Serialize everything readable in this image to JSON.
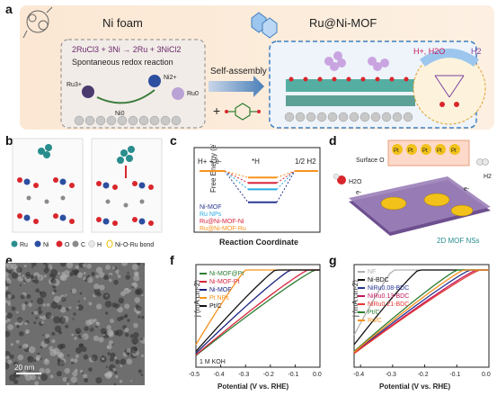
{
  "panel_labels": {
    "a": "a",
    "b": "b",
    "c": "c",
    "d": "d",
    "e": "e",
    "f": "f",
    "g": "g"
  },
  "panel_a": {
    "left_title": "Ni foam",
    "right_title": "Ru@Ni-MOF",
    "reaction": "2RuCl3 + 3Ni → 2Ru + 3NiCl2",
    "reaction_caption": "Spontaneous redox reaction",
    "species": {
      "ru3": "Ru3+",
      "ni2": "Ni2+",
      "ru0": "Ru0",
      "ni0": "Ni0"
    },
    "arrow_label": "Self-assembly",
    "plus": "+",
    "gas_left": "H+, H2O",
    "gas_right": "H2"
  },
  "panel_b": {
    "legend": [
      "Ru",
      "Ni",
      "O",
      "C",
      "H",
      "Ni-O-Ru bond"
    ],
    "legend_colors": [
      "#2a8d8d",
      "#2d4fa0",
      "#d9262c",
      "#8a8a8a",
      "#e8e8e8",
      "#e6c200"
    ]
  },
  "panel_c": {
    "chart_data": {
      "type": "line",
      "ylabel": "Free Energy (eV)",
      "xlabel": "Reaction Coordinate",
      "states": [
        "H+ + e-",
        "*H",
        "1/2 H2"
      ],
      "series": [
        {
          "name": "Ni-MOF",
          "color": "#2b3990",
          "values": [
            0,
            -0.58,
            0
          ]
        },
        {
          "name": "Ru NPs",
          "color": "#29abe2",
          "values": [
            0,
            -0.34,
            0
          ]
        },
        {
          "name": "Ru@Ni-MOF-Ni",
          "color": "#d7263d",
          "values": [
            0,
            -0.22,
            0
          ]
        },
        {
          "name": "Ru@Ni-MOF-Ru",
          "color": "#f7931e",
          "values": [
            0,
            -0.12,
            0
          ]
        }
      ]
    }
  },
  "panel_d": {
    "surface_label": "Surface O",
    "atom_labels": [
      "Pt",
      "Pt",
      "Pt",
      "Pt",
      "Pt"
    ],
    "h2o": "H2O",
    "h2": "H2",
    "electron": "e-",
    "caption": "2D MOF NSs"
  },
  "panel_e": {
    "scale": "20 nm"
  },
  "panel_f": {
    "chart_data": {
      "type": "line",
      "xlabel": "Potential (V vs. RHE)",
      "ylabel": "j (mA cm-2)",
      "xticks": [
        "-0.5",
        "-0.4",
        "-0.3",
        "-0.2",
        "-0.1",
        "0.0"
      ],
      "xlim": [
        -0.5,
        0.0
      ],
      "note": "1 M KOH",
      "series": [
        {
          "name": "Ni-MOF@Pt",
          "color": "#2e7d32",
          "onset": -0.02
        },
        {
          "name": "Ni-MOF-Pt",
          "color": "#d7263d",
          "onset": -0.05
        },
        {
          "name": "Ni-MOF",
          "color": "#1a237e",
          "onset": -0.12
        },
        {
          "name": "Pt NPs",
          "color": "#f7931e",
          "onset": -0.3
        },
        {
          "name": "Pt/C",
          "color": "#111111",
          "onset": -0.18
        }
      ]
    }
  },
  "panel_g": {
    "chart_data": {
      "type": "line",
      "xlabel": "Potential (V vs. RHE)",
      "ylabel": "j (mA cm-2)",
      "xticks": [
        "-0.4",
        "-0.3",
        "-0.2",
        "-0.1",
        "0.0"
      ],
      "xlim": [
        -0.42,
        0.0
      ],
      "series": [
        {
          "name": "NF",
          "color": "#b0b0b0",
          "onset": -0.3
        },
        {
          "name": "Ni-BDC",
          "color": "#111111",
          "onset": -0.22
        },
        {
          "name": "NiRu0.08-BDC",
          "color": "#283593",
          "onset": -0.06
        },
        {
          "name": "NiRu0.13-BDC",
          "color": "#c2185b",
          "onset": -0.04
        },
        {
          "name": "NiRu0.21-BDC",
          "color": "#e53935",
          "onset": -0.03
        },
        {
          "name": "Pt/C",
          "color": "#2e7d32",
          "onset": -0.1
        },
        {
          "name": "Ru/C",
          "color": "#f7931e",
          "onset": -0.08
        }
      ]
    }
  }
}
